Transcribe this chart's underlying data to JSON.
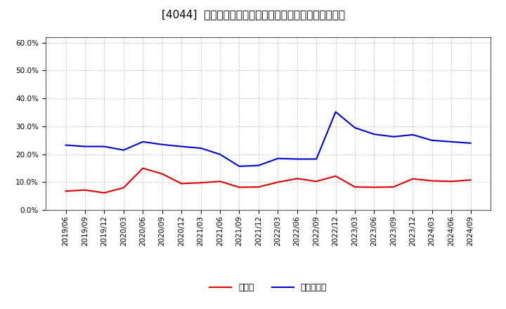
{
  "title": "[4044]  現預金、有利子負債の総資産に対する比率の推移",
  "dates": [
    "2019/06",
    "2019/09",
    "2019/12",
    "2020/03",
    "2020/06",
    "2020/09",
    "2020/12",
    "2021/03",
    "2021/06",
    "2021/09",
    "2021/12",
    "2022/03",
    "2022/06",
    "2022/09",
    "2022/12",
    "2023/03",
    "2023/06",
    "2023/09",
    "2023/12",
    "2024/03",
    "2024/06",
    "2024/09"
  ],
  "cash": [
    0.068,
    0.072,
    0.062,
    0.08,
    0.15,
    0.13,
    0.095,
    0.098,
    0.103,
    0.082,
    0.083,
    0.1,
    0.113,
    0.103,
    0.122,
    0.083,
    0.082,
    0.083,
    0.112,
    0.105,
    0.103,
    0.108
  ],
  "debt": [
    0.233,
    0.228,
    0.228,
    0.215,
    0.245,
    0.235,
    0.228,
    0.222,
    0.2,
    0.157,
    0.16,
    0.185,
    0.183,
    0.183,
    0.352,
    0.295,
    0.272,
    0.263,
    0.27,
    0.25,
    0.245,
    0.24
  ],
  "cash_color": "#dd0000",
  "debt_color": "#0000cc",
  "cash_label": "現預金",
  "debt_label": "有利子負債",
  "ylim": [
    0.0,
    0.62
  ],
  "yticks": [
    0.0,
    0.1,
    0.2,
    0.3,
    0.4,
    0.5,
    0.6
  ],
  "background_color": "#ffffff",
  "plot_bg_color": "#ffffff",
  "grid_color": "#aaaaaa",
  "title_fontsize": 11,
  "tick_fontsize": 7.5,
  "legend_fontsize": 9
}
